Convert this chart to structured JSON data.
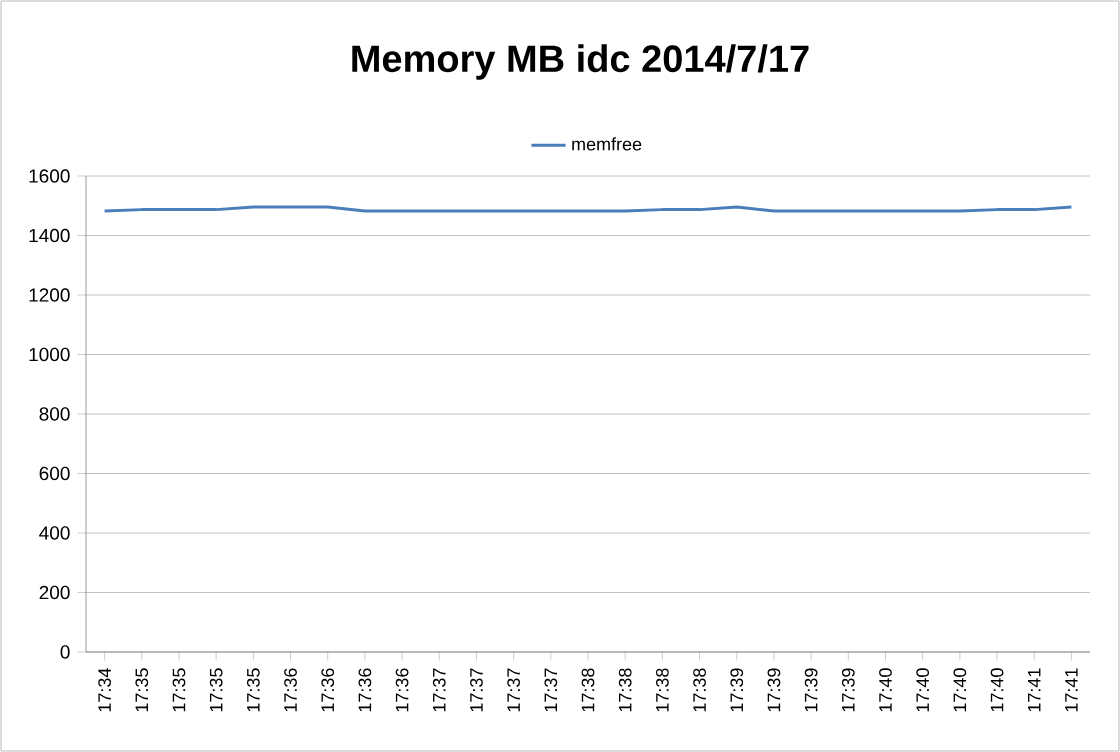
{
  "chart_data": {
    "type": "line",
    "title": "Memory MB idc  2014/7/17",
    "categories": [
      "17:34",
      "17:35",
      "17:35",
      "17:35",
      "17:35",
      "17:36",
      "17:36",
      "17:36",
      "17:36",
      "17:37",
      "17:37",
      "17:37",
      "17:37",
      "17:38",
      "17:38",
      "17:38",
      "17:38",
      "17:39",
      "17:39",
      "17:39",
      "17:39",
      "17:40",
      "17:40",
      "17:40",
      "17:40",
      "17:41",
      "17:41"
    ],
    "series": [
      {
        "name": "memfree",
        "color": "#4a7ebb",
        "values": [
          1482,
          1487,
          1487,
          1487,
          1496,
          1496,
          1496,
          1482,
          1482,
          1482,
          1482,
          1482,
          1482,
          1482,
          1482,
          1487,
          1487,
          1496,
          1482,
          1482,
          1482,
          1482,
          1482,
          1482,
          1487,
          1487,
          1496
        ]
      }
    ],
    "ylim": [
      0,
      1600
    ],
    "yticks": [
      0,
      200,
      400,
      600,
      800,
      1000,
      1200,
      1400,
      1600
    ],
    "grid": "y",
    "legend": "top",
    "marker": "none",
    "line_style": "solid"
  }
}
